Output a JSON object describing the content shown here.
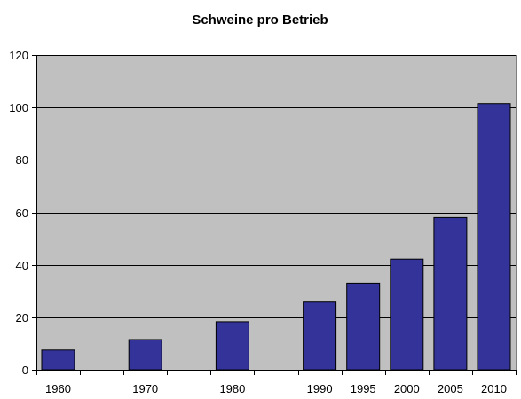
{
  "chart_data": {
    "type": "bar",
    "title": "Schweine pro Betrieb",
    "xlabel": "",
    "ylabel": "",
    "x_axis_type": "linear-year",
    "xlim": [
      1957.5,
      2012.5
    ],
    "categories": [
      "1960",
      "1970",
      "1980",
      "1990",
      "1995",
      "2000",
      "2005",
      "2010"
    ],
    "x": [
      1960,
      1970,
      1980,
      1990,
      1995,
      2000,
      2005,
      2010
    ],
    "values": [
      7.5,
      11.5,
      18.3,
      25.8,
      33,
      42.2,
      58,
      101.5
    ],
    "ylim": [
      0,
      120
    ],
    "yticks": [
      0,
      20,
      40,
      60,
      80,
      100,
      120
    ],
    "grid": true,
    "legend": "none",
    "colors": {
      "bar": "#333399",
      "bar_edge": "#000000",
      "plot_bg": "#c0c0c0",
      "grid": "#000000"
    }
  }
}
